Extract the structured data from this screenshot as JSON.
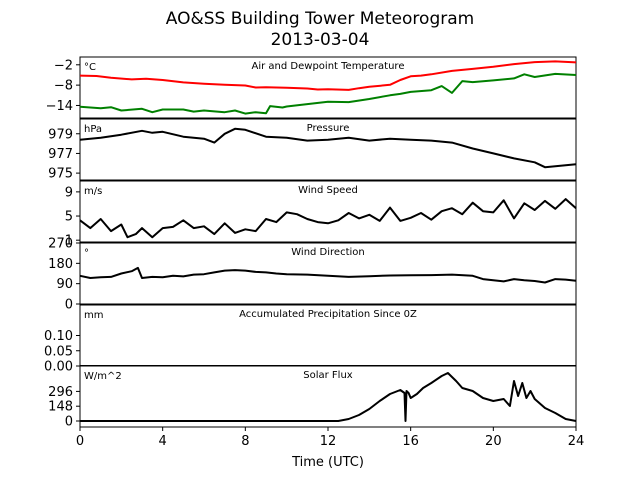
{
  "title": "AO&SS Building Tower Meteorogram",
  "subtitle": "2013-03-04",
  "xlabel": "Time (UTC)",
  "xticks": [
    "0",
    "4",
    "8",
    "12",
    "16",
    "20",
    "24"
  ],
  "xlim": [
    0,
    24
  ],
  "colors": {
    "temperature": "#ff0000",
    "dewpoint": "#008000",
    "default": "#000000"
  },
  "chart_data": [
    {
      "type": "line",
      "title": "Air and Dewpoint Temperature",
      "unit": "°C",
      "ylim": [
        -17.7,
        0.3
      ],
      "yticks": [
        -2,
        -8,
        -14
      ],
      "ytick_labels": [
        "−2",
        "−8",
        "−14"
      ],
      "series": [
        {
          "color": "#ff0000",
          "x": [
            0,
            0.8,
            1.5,
            2.5,
            3.2,
            4,
            5,
            6,
            7,
            8,
            8.5,
            9,
            10,
            11,
            11.5,
            12,
            13,
            13.5,
            14,
            15,
            15.5,
            16,
            16.5,
            17,
            18,
            19,
            20,
            21,
            22,
            23,
            24
          ],
          "y": [
            -5.2,
            -5.3,
            -5.8,
            -6.3,
            -6.1,
            -6.5,
            -7.2,
            -7.6,
            -7.9,
            -8.1,
            -8.7,
            -8.6,
            -8.8,
            -9.0,
            -9.3,
            -9.2,
            -9.4,
            -8.9,
            -8.5,
            -7.9,
            -6.5,
            -5.4,
            -5.2,
            -4.8,
            -3.8,
            -3.2,
            -2.6,
            -1.8,
            -1.2,
            -1.0,
            -1.3
          ]
        },
        {
          "color": "#008000",
          "x": [
            0,
            1,
            1.5,
            2,
            3,
            3.5,
            4,
            5,
            5.5,
            6,
            7,
            7.5,
            8,
            8.5,
            9,
            9.2,
            9.8,
            10,
            11,
            12,
            13,
            14,
            15,
            15.5,
            16,
            17,
            17.5,
            18,
            18.5,
            19,
            20,
            21,
            21.5,
            22,
            23,
            24
          ],
          "y": [
            -14.4,
            -14.8,
            -14.5,
            -15.5,
            -15.0,
            -16.0,
            -15.2,
            -15.2,
            -15.8,
            -15.5,
            -16.0,
            -15.5,
            -16.4,
            -16.0,
            -16.3,
            -14.2,
            -14.6,
            -14.3,
            -13.6,
            -12.9,
            -13.0,
            -12.1,
            -11.0,
            -10.6,
            -10.0,
            -9.5,
            -8.3,
            -10.3,
            -6.8,
            -7.1,
            -6.6,
            -6.0,
            -4.8,
            -5.6,
            -4.7,
            -5.0
          ]
        }
      ]
    },
    {
      "type": "line",
      "title": "Pressure",
      "unit": "hPa",
      "ylim": [
        974.3,
        980.5
      ],
      "yticks": [
        979,
        977,
        975
      ],
      "ytick_labels": [
        "979",
        "977",
        "975"
      ],
      "series": [
        {
          "color": "#000000",
          "x": [
            0,
            1,
            2,
            3,
            3.5,
            4,
            5,
            6,
            6.5,
            7,
            7.5,
            8,
            9,
            10,
            11,
            12,
            13,
            14,
            15,
            16,
            17,
            18,
            19,
            20,
            21,
            22,
            22.5,
            23,
            24
          ],
          "y": [
            978.4,
            978.6,
            978.9,
            979.3,
            979.1,
            979.2,
            978.7,
            978.5,
            978.1,
            979.0,
            979.5,
            979.4,
            978.7,
            978.6,
            978.3,
            978.4,
            978.6,
            978.3,
            978.5,
            978.4,
            978.3,
            978.1,
            977.5,
            977.0,
            976.5,
            976.1,
            975.6,
            975.7,
            975.9
          ]
        }
      ]
    },
    {
      "type": "line",
      "title": "Wind Speed",
      "unit": "m/s",
      "ylim": [
        0.7,
        10.8
      ],
      "yticks": [
        9,
        5,
        1
      ],
      "ytick_labels": [
        "9",
        "5",
        "1"
      ],
      "series": [
        {
          "color": "#000000",
          "x": [
            0,
            0.5,
            1,
            1.5,
            2,
            2.3,
            2.7,
            3,
            3.5,
            4,
            4.5,
            5,
            5.5,
            6,
            6.5,
            7,
            7.5,
            8,
            8.5,
            9,
            9.5,
            10,
            10.5,
            11,
            11.5,
            12,
            12.5,
            13,
            13.5,
            14,
            14.5,
            15,
            15.5,
            16,
            16.5,
            17,
            17.5,
            18,
            18.5,
            19,
            19.5,
            20,
            20.5,
            21,
            21.5,
            22,
            22.5,
            23,
            23.5,
            24
          ],
          "y": [
            4.3,
            3.0,
            4.5,
            2.5,
            3.6,
            1.5,
            2.0,
            3.0,
            1.5,
            3.0,
            3.2,
            4.3,
            3.0,
            3.3,
            2.0,
            3.8,
            2.2,
            2.8,
            2.5,
            4.5,
            4.0,
            5.6,
            5.3,
            4.5,
            4.0,
            3.8,
            4.3,
            5.5,
            4.6,
            5.2,
            4.2,
            6.4,
            4.2,
            4.7,
            5.5,
            4.4,
            5.8,
            6.3,
            5.3,
            7.2,
            5.8,
            5.6,
            7.6,
            4.6,
            7.1,
            6.0,
            7.5,
            6.2,
            7.8,
            6.3
          ]
        }
      ]
    },
    {
      "type": "line",
      "title": "Wind Direction",
      "unit": "°",
      "ylim": [
        0,
        270
      ],
      "yticks": [
        270,
        180,
        90,
        0
      ],
      "ytick_labels": [
        "270",
        "180",
        "90",
        "0"
      ],
      "series": [
        {
          "color": "#000000",
          "x": [
            0,
            0.5,
            1,
            1.5,
            2,
            2.5,
            2.8,
            3,
            3.5,
            4,
            4.5,
            5,
            5.5,
            6,
            6.5,
            7,
            7.5,
            8,
            8.5,
            9,
            9.5,
            10,
            11,
            12,
            13,
            14,
            15,
            16,
            17,
            18,
            19,
            19.5,
            20,
            20.5,
            21,
            21.5,
            22,
            22.5,
            23,
            23.5,
            24
          ],
          "y": [
            125,
            115,
            118,
            120,
            135,
            145,
            160,
            115,
            120,
            118,
            125,
            122,
            130,
            132,
            140,
            148,
            150,
            148,
            142,
            140,
            135,
            132,
            130,
            125,
            120,
            123,
            126,
            127,
            128,
            130,
            125,
            110,
            105,
            100,
            110,
            105,
            102,
            95,
            110,
            108,
            103
          ]
        }
      ]
    },
    {
      "type": "line",
      "title": "Accumulated Precipitation Since 0Z",
      "unit": "mm",
      "ylim": [
        0,
        0.2
      ],
      "yticks": [
        0.1,
        0.05,
        0.0
      ],
      "ytick_labels": [
        "0.10",
        "0.05",
        "0.00"
      ],
      "series": [
        {
          "color": "#000000",
          "x": [
            0,
            24
          ],
          "y": [
            0.0,
            0.0
          ]
        }
      ]
    },
    {
      "type": "line",
      "title": "Solar Flux",
      "unit": "W/m^2",
      "ylim": [
        -60,
        550
      ],
      "yticks": [
        296,
        148,
        0
      ],
      "ytick_labels": [
        "296",
        "148",
        "0"
      ],
      "series": [
        {
          "color": "#000000",
          "x": [
            0,
            12.5,
            13,
            13.5,
            14,
            14.5,
            15,
            15.5,
            15.7,
            15.75,
            15.8,
            15.9,
            16,
            16.3,
            16.6,
            17,
            17.5,
            17.8,
            18.2,
            18.5,
            19,
            19.5,
            20,
            20.5,
            20.8,
            21,
            21.2,
            21.4,
            21.6,
            21.8,
            22,
            22.5,
            23,
            23.5,
            24
          ],
          "y": [
            0,
            0,
            20,
            60,
            120,
            200,
            270,
            310,
            280,
            0,
            300,
            280,
            230,
            270,
            330,
            380,
            450,
            480,
            400,
            330,
            300,
            230,
            200,
            220,
            150,
            400,
            250,
            380,
            230,
            300,
            220,
            130,
            80,
            20,
            0
          ]
        }
      ]
    }
  ]
}
